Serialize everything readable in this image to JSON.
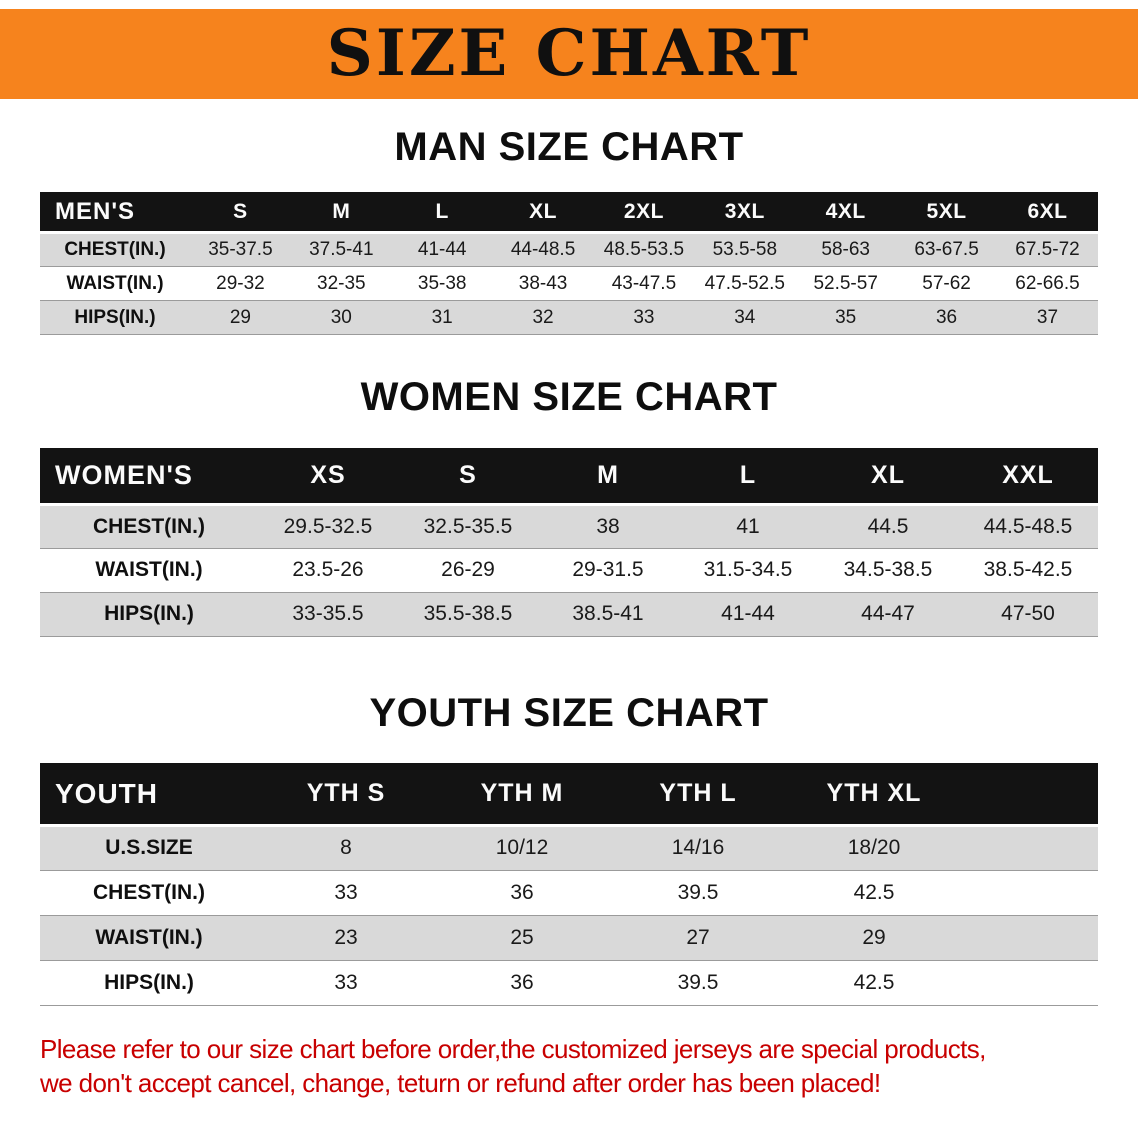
{
  "banner": {
    "title": "SIZE CHART",
    "bg_color": "#F6831D",
    "text_color": "#101010"
  },
  "sections": [
    {
      "heading": "MAN SIZE CHART",
      "table": {
        "header": [
          "MEN'S",
          "S",
          "M",
          "L",
          "XL",
          "2XL",
          "3XL",
          "4XL",
          "5XL",
          "6XL"
        ],
        "rows": [
          [
            "CHEST(IN.)",
            "35-37.5",
            "37.5-41",
            "41-44",
            "44-48.5",
            "48.5-53.5",
            "53.5-58",
            "58-63",
            "63-67.5",
            "67.5-72"
          ],
          [
            "WAIST(IN.)",
            "29-32",
            "32-35",
            "35-38",
            "38-43",
            "43-47.5",
            "47.5-52.5",
            "52.5-57",
            "57-62",
            "62-66.5"
          ],
          [
            "HIPS(IN.)",
            "29",
            "30",
            "31",
            "32",
            "33",
            "34",
            "35",
            "36",
            "37"
          ]
        ]
      }
    },
    {
      "heading": "WOMEN SIZE CHART",
      "table": {
        "header": [
          "WOMEN'S",
          "XS",
          "S",
          "M",
          "L",
          "XL",
          "XXL"
        ],
        "rows": [
          [
            "CHEST(IN.)",
            "29.5-32.5",
            "32.5-35.5",
            "38",
            "41",
            "44.5",
            "44.5-48.5"
          ],
          [
            "WAIST(IN.)",
            "23.5-26",
            "26-29",
            "29-31.5",
            "31.5-34.5",
            "34.5-38.5",
            "38.5-42.5"
          ],
          [
            "HIPS(IN.)",
            "33-35.5",
            "35.5-38.5",
            "38.5-41",
            "41-44",
            "44-47",
            "47-50"
          ]
        ]
      }
    },
    {
      "heading": "YOUTH SIZE CHART",
      "table": {
        "header": [
          "YOUTH",
          "YTH S",
          "YTH M",
          "YTH L",
          "YTH XL"
        ],
        "rows": [
          [
            "U.S.SIZE",
            "8",
            "10/12",
            "14/16",
            "18/20"
          ],
          [
            "CHEST(IN.)",
            "33",
            "36",
            "39.5",
            "42.5"
          ],
          [
            "WAIST(IN.)",
            "23",
            "25",
            "27",
            "29"
          ],
          [
            "HIPS(IN.)",
            "33",
            "36",
            "39.5",
            "42.5"
          ]
        ]
      }
    }
  ],
  "disclaimer": {
    "color": "#C80000",
    "lines": [
      "Please refer to our size chart before order,the customized jerseys are special products,",
      "we don't accept cancel, change, teturn or refund after order has been placed!"
    ]
  },
  "chart_data": [
    {
      "type": "table",
      "title": "MAN SIZE CHART",
      "columns": [
        "MEN'S",
        "S",
        "M",
        "L",
        "XL",
        "2XL",
        "3XL",
        "4XL",
        "5XL",
        "6XL"
      ],
      "rows": [
        [
          "CHEST(IN.)",
          "35-37.5",
          "37.5-41",
          "41-44",
          "44-48.5",
          "48.5-53.5",
          "53.5-58",
          "58-63",
          "63-67.5",
          "67.5-72"
        ],
        [
          "WAIST(IN.)",
          "29-32",
          "32-35",
          "35-38",
          "38-43",
          "43-47.5",
          "47.5-52.5",
          "52.5-57",
          "57-62",
          "62-66.5"
        ],
        [
          "HIPS(IN.)",
          "29",
          "30",
          "31",
          "32",
          "33",
          "34",
          "35",
          "36",
          "37"
        ]
      ]
    },
    {
      "type": "table",
      "title": "WOMEN SIZE CHART",
      "columns": [
        "WOMEN'S",
        "XS",
        "S",
        "M",
        "L",
        "XL",
        "XXL"
      ],
      "rows": [
        [
          "CHEST(IN.)",
          "29.5-32.5",
          "32.5-35.5",
          "38",
          "41",
          "44.5",
          "44.5-48.5"
        ],
        [
          "WAIST(IN.)",
          "23.5-26",
          "26-29",
          "29-31.5",
          "31.5-34.5",
          "34.5-38.5",
          "38.5-42.5"
        ],
        [
          "HIPS(IN.)",
          "33-35.5",
          "35.5-38.5",
          "38.5-41",
          "41-44",
          "44-47",
          "47-50"
        ]
      ]
    },
    {
      "type": "table",
      "title": "YOUTH SIZE CHART",
      "columns": [
        "YOUTH",
        "YTH S",
        "YTH M",
        "YTH L",
        "YTH XL"
      ],
      "rows": [
        [
          "U.S.SIZE",
          "8",
          "10/12",
          "14/16",
          "18/20"
        ],
        [
          "CHEST(IN.)",
          "33",
          "36",
          "39.5",
          "42.5"
        ],
        [
          "WAIST(IN.)",
          "23",
          "25",
          "27",
          "29"
        ],
        [
          "HIPS(IN.)",
          "33",
          "36",
          "39.5",
          "42.5"
        ]
      ]
    }
  ]
}
